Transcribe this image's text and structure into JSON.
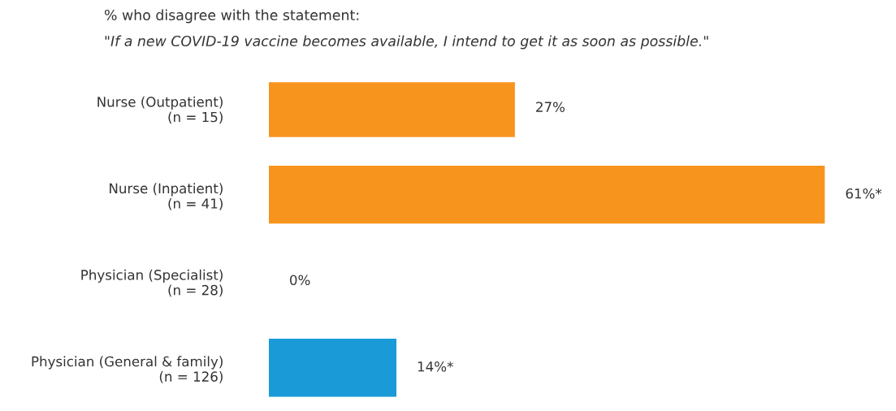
{
  "chart_data": {
    "type": "bar",
    "orientation": "horizontal",
    "title": "% who disagree with the statement:",
    "subtitle": "\"If a new COVID-19 vaccine becomes available, I intend to get it as soon as possible.\"",
    "categories": [
      "Nurse (Outpatient)\n(n = 15)",
      "Nurse (Inpatient)\n(n = 41)",
      "Physician (Specialist)\n(n = 28)",
      "Physician (General & family)\n(n = 126)"
    ],
    "values": [
      27,
      61,
      0,
      14
    ],
    "value_labels": [
      "27%",
      "61%*",
      "0%",
      "14%*"
    ],
    "colors": [
      "#f7941d",
      "#f7941d",
      "#1a9ad6",
      "#1a9ad6"
    ],
    "grid": false,
    "legend": false,
    "tick_labels": "y"
  }
}
